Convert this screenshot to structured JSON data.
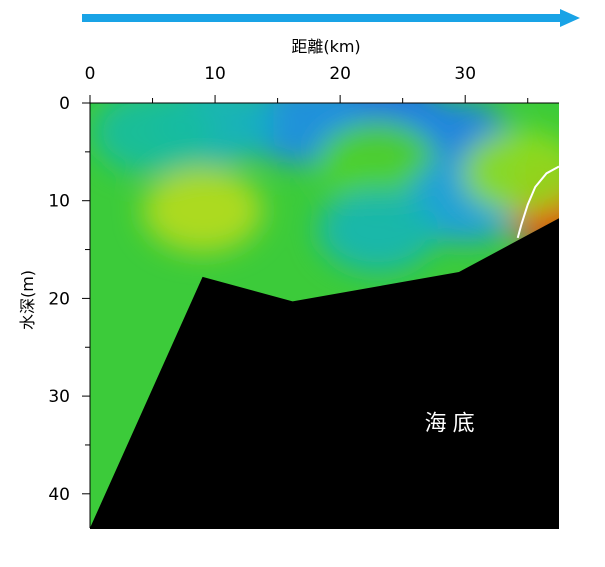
{
  "chart_data": {
    "type": "heatmap",
    "title": "",
    "xlabel": "距離(km)",
    "ylabel": "水深(m)",
    "xlim": [
      0,
      37.5
    ],
    "ylim": [
      0,
      43.5
    ],
    "x_axis_position": "top",
    "y_axis_inverted": true,
    "x_ticks": [
      0,
      10,
      20,
      30
    ],
    "x_tick_labels": [
      "0",
      "10",
      "20",
      "30"
    ],
    "y_ticks": [
      0,
      10,
      20,
      30,
      40
    ],
    "y_tick_labels": [
      "0",
      "10",
      "20",
      "30",
      "40"
    ],
    "x_minor_step": 5,
    "y_minor_step": 5,
    "direction_arrow_color": "#19a3e6",
    "colormap": [
      "#1e6cf0",
      "#1aa6e0",
      "#18c48a",
      "#40d028",
      "#9be01e",
      "#e6d21a",
      "#f58a12",
      "#ee3a0a"
    ],
    "background_color": "#3ccb3a",
    "field_blobs": [
      {
        "x": 23.5,
        "y": 1.5,
        "level": 0.0
      },
      {
        "x": 17,
        "y": 2,
        "level": 0.08
      },
      {
        "x": 29,
        "y": 4,
        "level": 0.05
      },
      {
        "x": 10,
        "y": 2,
        "level": 0.2
      },
      {
        "x": 5,
        "y": 3,
        "level": 0.25
      },
      {
        "x": 23,
        "y": 6,
        "level": 0.45
      },
      {
        "x": 30,
        "y": 10,
        "level": 0.12
      },
      {
        "x": 23,
        "y": 13,
        "level": 0.22
      },
      {
        "x": 9,
        "y": 11,
        "level": 0.62
      },
      {
        "x": 36.5,
        "y": 10,
        "level": 1.0
      },
      {
        "x": 34.5,
        "y": 7,
        "level": 0.55
      }
    ],
    "isoline_color": "#ffffff",
    "isoline": [
      [
        37.5,
        6.5
      ],
      [
        36.5,
        7.2
      ],
      [
        35.6,
        8.6
      ],
      [
        35,
        10.4
      ],
      [
        34.5,
        12.4
      ],
      [
        34.2,
        13.8
      ]
    ],
    "seabed_color": "#000000",
    "seabed_profile": [
      [
        0,
        43.5
      ],
      [
        9,
        17.8
      ],
      [
        16.2,
        20.3
      ],
      [
        29.5,
        17.3
      ],
      [
        37.5,
        11.8
      ]
    ],
    "seabed_label": "海底",
    "seabed_label_position": {
      "x": 29,
      "y": 33.5
    }
  }
}
